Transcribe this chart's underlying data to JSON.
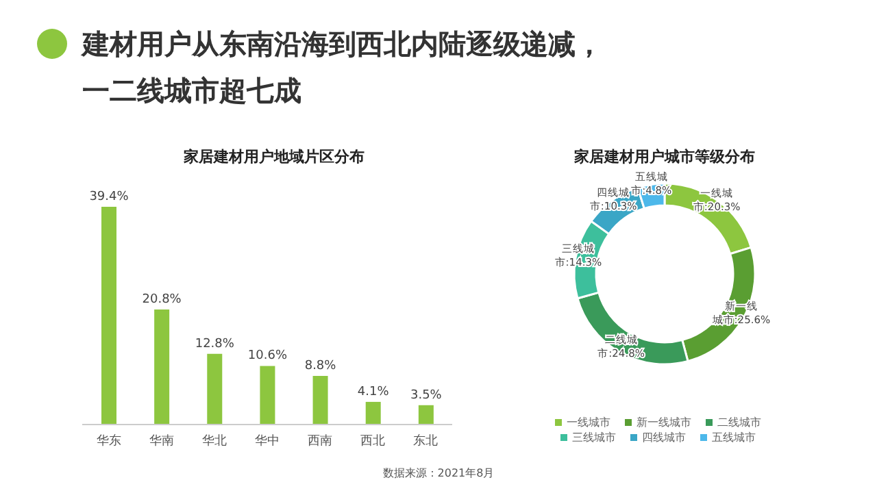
{
  "chart_data": [
    {
      "type": "bar",
      "title": "建材用户从东南沿海到西北内陆逐级递减，一二线城市超七成",
      "subtitle": "家居建材用户地域片区分布",
      "categories": [
        "华东",
        "华南",
        "华北",
        "华中",
        "西南",
        "西北",
        "东北"
      ],
      "values": [
        39.4,
        20.8,
        12.8,
        10.6,
        8.8,
        4.1,
        3.5
      ],
      "value_labels": [
        "39.4%",
        "20.8%",
        "12.8%",
        "10.6%",
        "8.8%",
        "4.1%",
        "3.5%"
      ],
      "color": "#8dc63f",
      "tick_labels": "x",
      "grid": false,
      "legend": false
    },
    {
      "type": "donut",
      "title": "家居建材用户城市等级分布",
      "categories": [
        "一线城市",
        "新一线城市",
        "二线城市",
        "三线城市",
        "四线城市",
        "五线城市"
      ],
      "values": [
        20.3,
        25.6,
        24.8,
        14.3,
        10.3,
        4.8
      ],
      "colors": [
        "#8dc63f",
        "#5a9e32",
        "#3a9a5a",
        "#3dbf9c",
        "#3aa6c6",
        "#4db8ea"
      ],
      "value_labels": [
        "一线城市:20.3%",
        "新一线城市:25.6%",
        "二线城市:24.8%",
        "三线城市:14.3%",
        "四线城市:10.3%",
        "五线城市:4.8%"
      ],
      "legend": "bottom",
      "annotations": [
        "数据来源：2021年8月"
      ]
    }
  ]
}
